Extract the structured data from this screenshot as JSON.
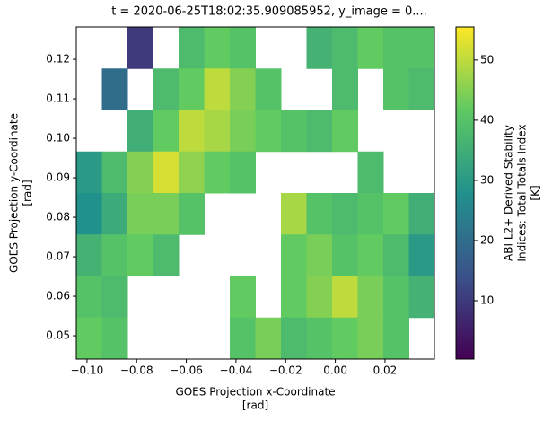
{
  "chart_data": {
    "type": "heatmap",
    "title": "t = 2020-06-25T18:02:35.909085952, y_image = 0....",
    "xlabel": [
      "GOES Projection x-Coordinate",
      "[rad]"
    ],
    "ylabel": [
      "GOES Projection y-Coordinate",
      "[rad]"
    ],
    "colorbar_label": [
      "ABI L2+ Derived Stability",
      "Indices: Total Totals Index",
      "[K]"
    ],
    "colormap": "viridis",
    "xlim": [
      -0.1043,
      0.0399
    ],
    "ylim": [
      0.0441,
      0.1282
    ],
    "clim": [
      0.3,
      55.5
    ],
    "xticks": [
      {
        "value": -0.1,
        "label": "−0.10"
      },
      {
        "value": -0.08,
        "label": "−0.08"
      },
      {
        "value": -0.06,
        "label": "−0.06"
      },
      {
        "value": -0.04,
        "label": "−0.04"
      },
      {
        "value": -0.02,
        "label": "−0.02"
      },
      {
        "value": 0,
        "label": "0.00"
      },
      0.02
    ],
    "yticks": [
      0.05,
      0.06,
      0.07,
      0.08,
      0.09,
      {
        "value": 0.1,
        "label": "0.10"
      },
      0.11,
      0.12
    ],
    "cticks": [
      10,
      20,
      30,
      40,
      50
    ],
    "z": [
      [
        null,
        null,
        10,
        null,
        38,
        42,
        40,
        null,
        null,
        36,
        38,
        42,
        40,
        40
      ],
      [
        null,
        20,
        null,
        38,
        42,
        50,
        45,
        40,
        null,
        null,
        38,
        null,
        40,
        38
      ],
      [
        null,
        null,
        35,
        42,
        50,
        48,
        44,
        42,
        40,
        38,
        42,
        null,
        null,
        null
      ],
      [
        30,
        38,
        45,
        52,
        46,
        42,
        40,
        null,
        null,
        null,
        null,
        38,
        null,
        null
      ],
      [
        28,
        34,
        44,
        44,
        40,
        null,
        null,
        null,
        48,
        40,
        38,
        40,
        42,
        35
      ],
      [
        36,
        40,
        42,
        38,
        null,
        null,
        null,
        null,
        42,
        44,
        40,
        42,
        38,
        30
      ],
      [
        40,
        38,
        null,
        null,
        null,
        null,
        42,
        null,
        42,
        45,
        50,
        44,
        40,
        36
      ],
      [
        42,
        40,
        null,
        null,
        null,
        null,
        40,
        44,
        38,
        40,
        42,
        44,
        40,
        null
      ]
    ]
  }
}
